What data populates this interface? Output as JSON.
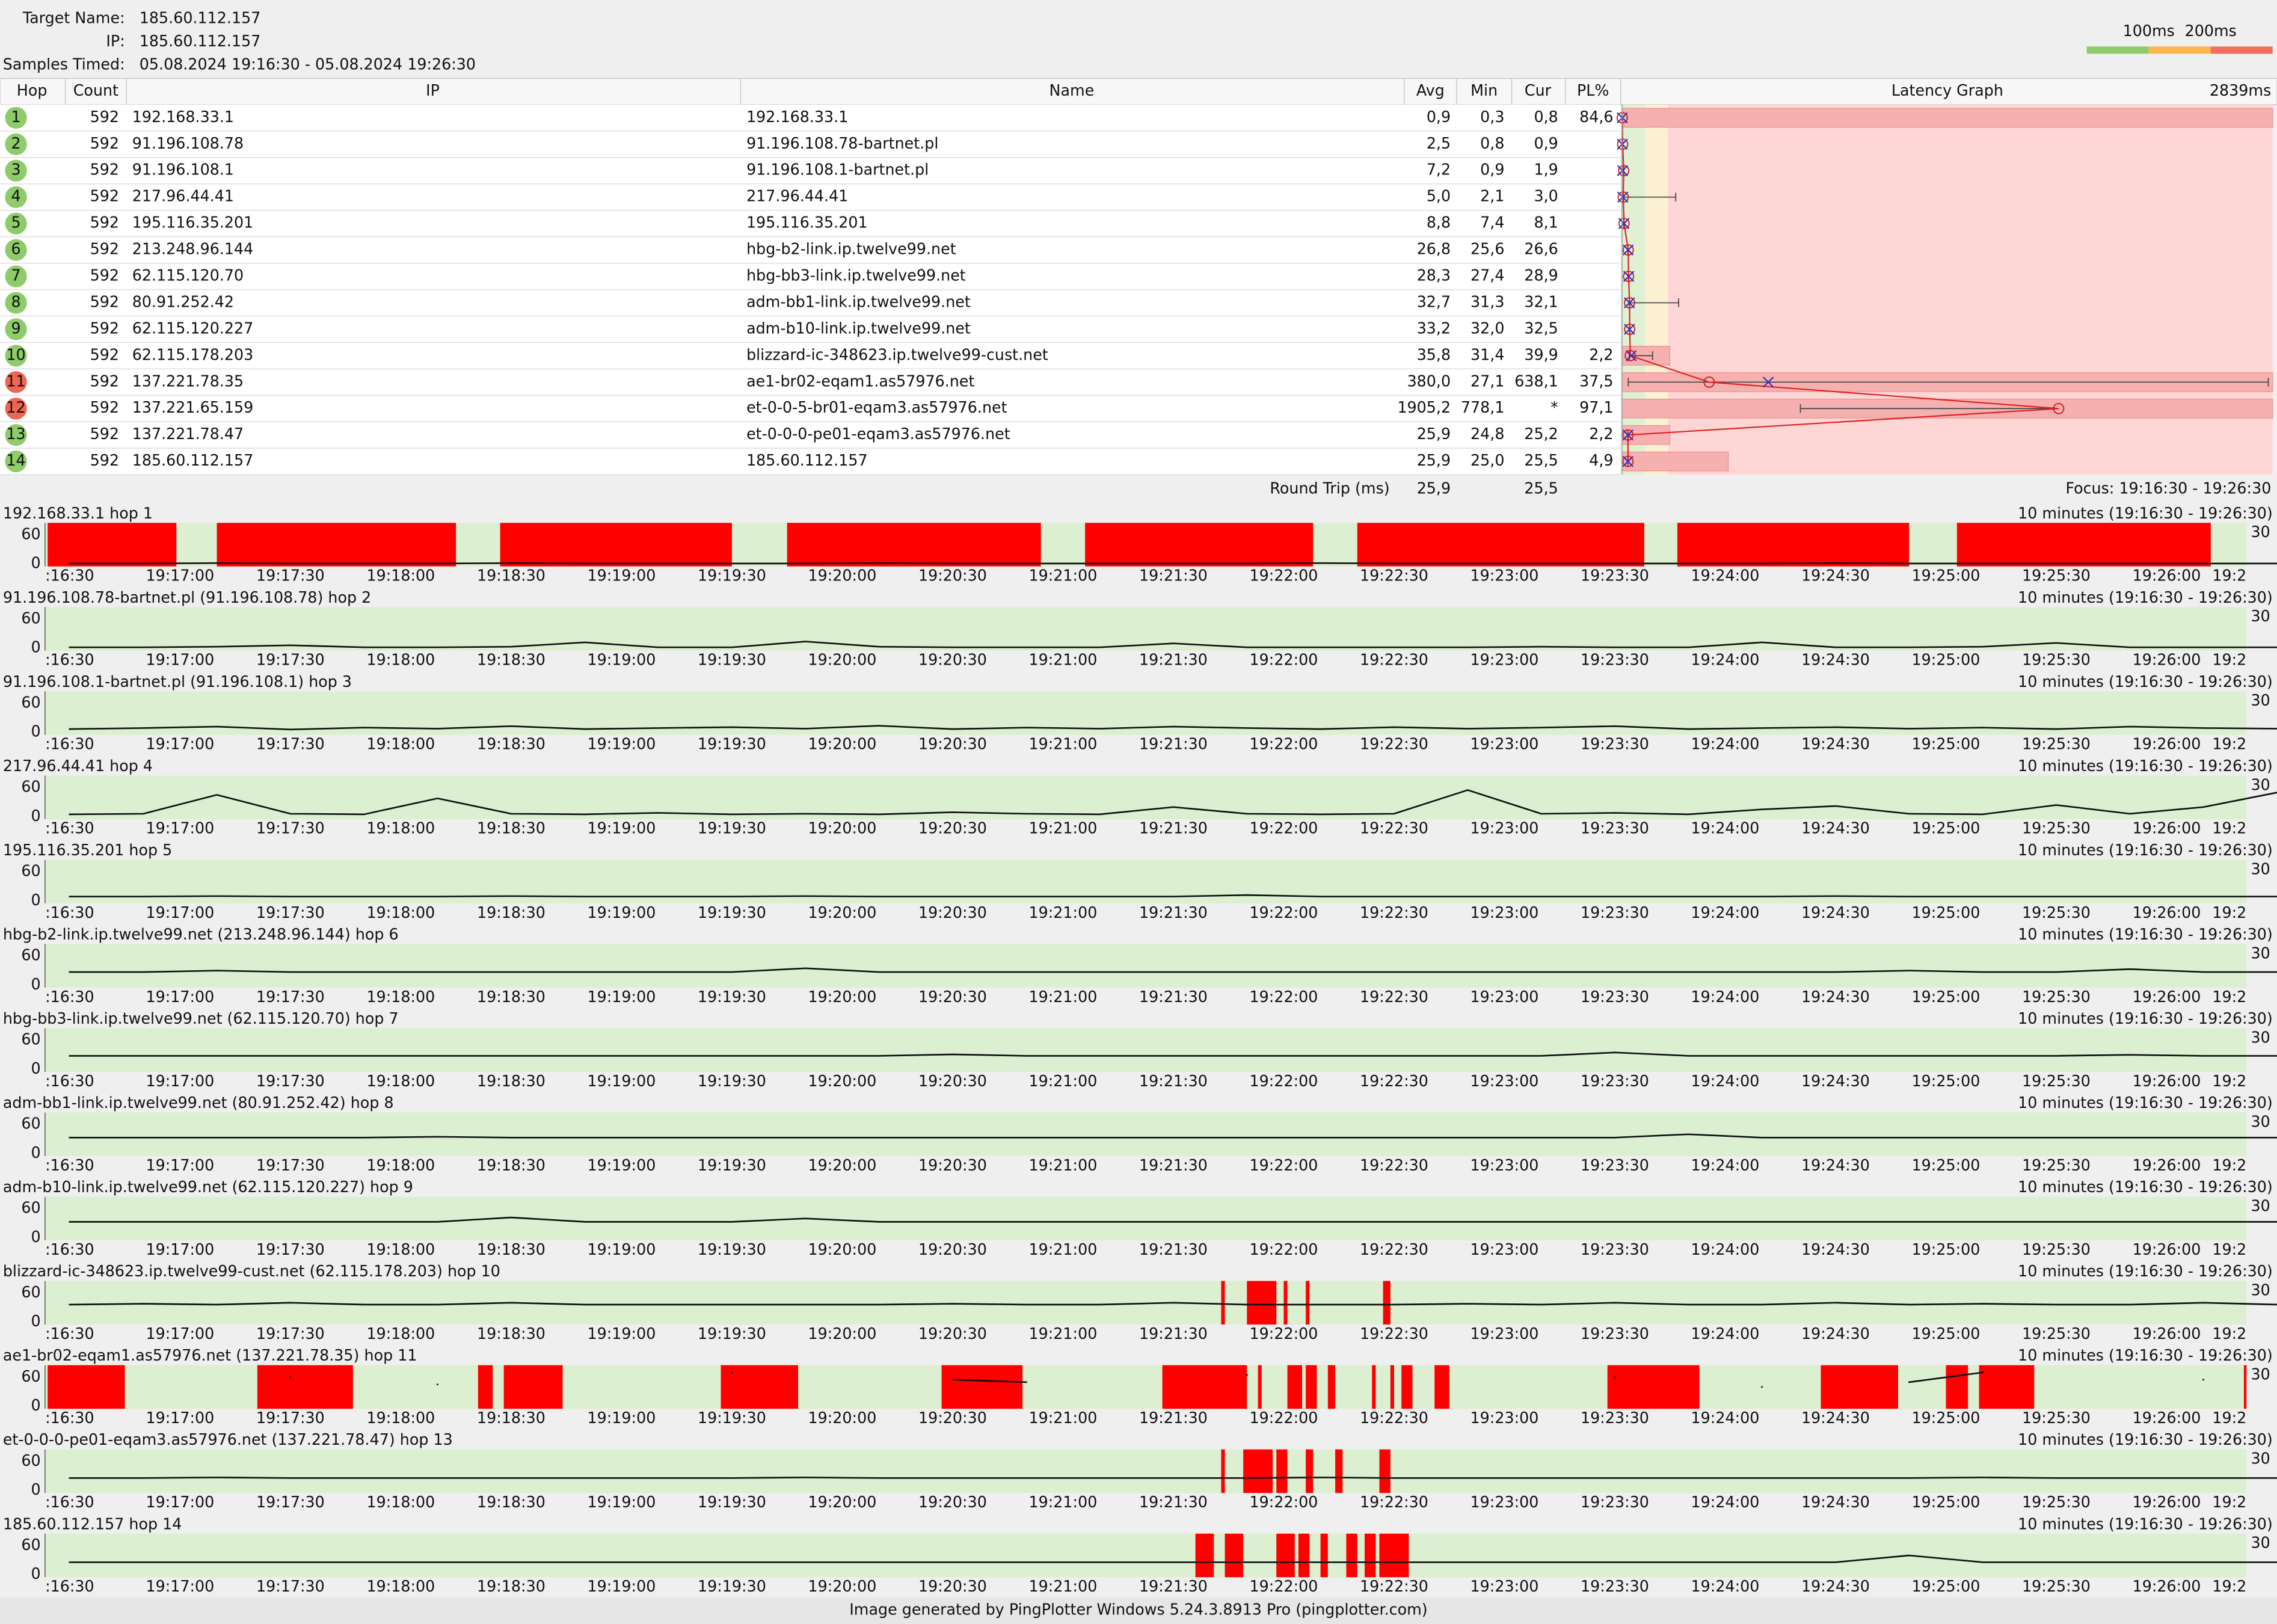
{
  "header": {
    "target_name_label": "Target Name:",
    "target_name": "185.60.112.157",
    "ip_label": "IP:",
    "ip": "185.60.112.157",
    "samples_label": "Samples Timed:",
    "samples": "05.08.2024 19:16:30 - 05.08.2024 19:26:30"
  },
  "legend": {
    "thresholds": [
      {
        "value": 100,
        "label": "100ms"
      },
      {
        "value": 200,
        "label": "200ms"
      }
    ],
    "colors": [
      "#8dcb6b",
      "#fbb74e",
      "#f26e5e"
    ]
  },
  "table": {
    "columns": [
      "Hop",
      "Count",
      "IP",
      "Name",
      "Avg",
      "Min",
      "Cur",
      "PL%",
      "Latency Graph"
    ],
    "graph_max": {
      "value": 2839,
      "label": "2839ms"
    },
    "rows": [
      {
        "hop": "1",
        "color": "#8dcb6b",
        "count": "592",
        "ip": "192.168.33.1",
        "name": "192.168.33.1",
        "avg": "0,9",
        "min": "0,3",
        "cur": "0,8",
        "pl": "84,6"
      },
      {
        "hop": "2",
        "color": "#8dcb6b",
        "count": "592",
        "ip": "91.196.108.78",
        "name": "91.196.108.78-bartnet.pl",
        "avg": "2,5",
        "min": "0,8",
        "cur": "0,9",
        "pl": null
      },
      {
        "hop": "3",
        "color": "#8dcb6b",
        "count": "592",
        "ip": "91.196.108.1",
        "name": "91.196.108.1-bartnet.pl",
        "avg": "7,2",
        "min": "0,9",
        "cur": "1,9",
        "pl": null
      },
      {
        "hop": "4",
        "color": "#8dcb6b",
        "count": "592",
        "ip": "217.96.44.41",
        "name": "217.96.44.41",
        "avg": "5,0",
        "min": "2,1",
        "cur": "3,0",
        "pl": null,
        "max": 234
      },
      {
        "hop": "5",
        "color": "#8dcb6b",
        "count": "592",
        "ip": "195.116.35.201",
        "name": "195.116.35.201",
        "avg": "8,8",
        "min": "7,4",
        "cur": "8,1",
        "pl": null
      },
      {
        "hop": "6",
        "color": "#8dcb6b",
        "count": "592",
        "ip": "213.248.96.144",
        "name": "hbg-b2-link.ip.twelve99.net",
        "avg": "26,8",
        "min": "25,6",
        "cur": "26,6",
        "pl": null
      },
      {
        "hop": "7",
        "color": "#8dcb6b",
        "count": "592",
        "ip": "62.115.120.70",
        "name": "hbg-bb3-link.ip.twelve99.net",
        "avg": "28,3",
        "min": "27,4",
        "cur": "28,9",
        "pl": null
      },
      {
        "hop": "8",
        "color": "#8dcb6b",
        "count": "592",
        "ip": "80.91.252.42",
        "name": "adm-bb1-link.ip.twelve99.net",
        "avg": "32,7",
        "min": "31,3",
        "cur": "32,1",
        "pl": null,
        "max": 247
      },
      {
        "hop": "9",
        "color": "#8dcb6b",
        "count": "592",
        "ip": "62.115.120.227",
        "name": "adm-b10-link.ip.twelve99.net",
        "avg": "33,2",
        "min": "32,0",
        "cur": "32,5",
        "pl": null
      },
      {
        "hop": "10",
        "color": "#8dcb6b",
        "count": "592",
        "ip": "62.115.178.203",
        "name": "blizzard-ic-348623.ip.twelve99-cust.net",
        "avg": "35,8",
        "min": "31,4",
        "cur": "39,9",
        "pl": "2,2",
        "max": 133
      },
      {
        "hop": "11",
        "color": "#ee6552",
        "count": "592",
        "ip": "137.221.78.35",
        "name": "ae1-br02-eqam1.as57976.net",
        "avg": "380,0",
        "min": "27,1",
        "cur": "638,1",
        "pl": "37,5",
        "max": 2820
      },
      {
        "hop": "12",
        "color": "#ee6552",
        "count": "592",
        "ip": "137.221.65.159",
        "name": "et-0-0-5-br01-eqam3.as57976.net",
        "avg": "1905,2",
        "min": "778,1",
        "cur": "*",
        "pl": "97,1"
      },
      {
        "hop": "13",
        "color": "#8dcb6b",
        "count": "592",
        "ip": "137.221.78.47",
        "name": "et-0-0-0-pe01-eqam3.as57976.net",
        "avg": "25,9",
        "min": "24,8",
        "cur": "25,2",
        "pl": "2,2"
      },
      {
        "hop": "14",
        "color": "#8dcb6b",
        "count": "592",
        "ip": "185.60.112.157",
        "name": "185.60.112.157",
        "avg": "25,9",
        "min": "25,0",
        "cur": "25,5",
        "pl": "4,9"
      }
    ],
    "round_trip": {
      "label": "Round Trip (ms)",
      "avg": "25,9",
      "cur": "25,5"
    },
    "focus": "Focus: 19:16:30 - 19:26:30"
  },
  "timelines": {
    "range_label": "10 minutes (19:16:30 - 19:26:30)",
    "loss_max": 30,
    "ylim": [
      -5,
      85
    ],
    "yticks": [
      60,
      0
    ],
    "xlim": [
      "19:16:30",
      "19:26:30"
    ],
    "xticks": [
      {
        "value": "19:16:30",
        "label": ":16:30"
      },
      "19:17:00",
      "19:17:30",
      "19:18:00",
      "19:18:30",
      "19:19:00",
      "19:19:30",
      "19:20:00",
      "19:20:30",
      "19:21:00",
      "19:21:30",
      "19:22:00",
      "19:22:30",
      "19:23:00",
      "19:23:30",
      "19:24:00",
      "19:24:30",
      "19:25:00",
      "19:25:30",
      "19:26:00",
      {
        "value": "19:26:30",
        "label": "19:2"
      }
    ],
    "sample_times": [
      "19:16:30",
      "19:16:50",
      "19:17:10",
      "19:17:30",
      "19:17:50",
      "19:18:10",
      "19:18:30",
      "19:18:50",
      "19:19:10",
      "19:19:30",
      "19:19:50",
      "19:20:10",
      "19:20:30",
      "19:20:50",
      "19:21:10",
      "19:21:30",
      "19:21:50",
      "19:22:10",
      "19:22:30",
      "19:22:50",
      "19:23:10",
      "19:23:30",
      "19:23:50",
      "19:24:10",
      "19:24:30",
      "19:24:50",
      "19:25:10",
      "19:25:30",
      "19:25:50",
      "19:26:10",
      "19:26:30"
    ],
    "panels": [
      {
        "title": "192.168.33.1 hop 1",
        "latency": [
          1,
          1,
          2,
          1,
          1,
          1,
          2,
          1,
          1,
          1,
          1,
          2,
          1,
          1,
          1,
          1,
          1,
          2,
          1,
          1,
          1,
          1,
          1,
          1,
          2,
          1,
          1,
          1,
          1,
          1,
          1
        ],
        "loss": [
          [
            "19:16:24",
            "19:16:59"
          ],
          [
            "19:17:10",
            "19:18:15"
          ],
          [
            "19:18:27",
            "19:19:30"
          ],
          [
            "19:19:45",
            "19:20:54"
          ],
          [
            "19:21:06",
            "19:22:08"
          ],
          [
            "19:22:20",
            "19:23:38"
          ],
          [
            "19:23:47",
            "19:24:50"
          ],
          [
            "19:25:03",
            "19:26:12"
          ]
        ]
      },
      {
        "title": "91.196.108.78-bartnet.pl (91.196.108.78) hop 2",
        "latency": [
          2,
          2,
          3,
          6,
          2,
          2,
          3,
          12,
          2,
          2,
          14,
          3,
          2,
          2,
          2,
          10,
          2,
          2,
          2,
          2,
          3,
          2,
          2,
          12,
          2,
          2,
          3,
          11,
          2,
          2,
          2
        ],
        "loss": []
      },
      {
        "title": "91.196.108.1-bartnet.pl (91.196.108.1) hop 3",
        "latency": [
          7,
          9,
          12,
          6,
          10,
          8,
          13,
          7,
          9,
          11,
          8,
          14,
          7,
          10,
          8,
          12,
          9,
          7,
          11,
          8,
          10,
          13,
          7,
          9,
          11,
          8,
          10,
          7,
          12,
          9,
          8
        ],
        "loss": []
      },
      {
        "title": "217.96.44.41 hop 4",
        "latency": [
          5,
          6,
          45,
          6,
          5,
          38,
          6,
          5,
          8,
          5,
          6,
          5,
          9,
          6,
          5,
          20,
          6,
          5,
          6,
          55,
          6,
          8,
          5,
          15,
          22,
          6,
          5,
          24,
          6,
          20,
          50
        ],
        "loss": []
      },
      {
        "title": "195.116.35.201 hop 5",
        "latency": [
          9,
          9,
          10,
          9,
          9,
          9,
          10,
          9,
          9,
          9,
          10,
          9,
          9,
          9,
          9,
          9,
          12,
          9,
          9,
          9,
          9,
          9,
          9,
          9,
          10,
          9,
          9,
          9,
          9,
          9,
          9
        ],
        "loss": []
      },
      {
        "title": "hbg-b2-link.ip.twelve99.net (213.248.96.144) hop 6",
        "latency": [
          27,
          27,
          30,
          27,
          27,
          27,
          27,
          27,
          27,
          27,
          35,
          27,
          27,
          27,
          27,
          27,
          27,
          27,
          27,
          27,
          27,
          27,
          27,
          27,
          27,
          30,
          27,
          27,
          33,
          27,
          27
        ],
        "loss": []
      },
      {
        "title": "hbg-bb3-link.ip.twelve99.net (62.115.120.70) hop 7",
        "latency": [
          28,
          28,
          28,
          28,
          28,
          28,
          28,
          28,
          28,
          28,
          28,
          28,
          31,
          28,
          28,
          28,
          28,
          28,
          28,
          28,
          28,
          35,
          28,
          28,
          28,
          28,
          28,
          28,
          30,
          28,
          28
        ],
        "loss": []
      },
      {
        "title": "adm-bb1-link.ip.twelve99.net (80.91.252.42) hop 8",
        "latency": [
          33,
          33,
          33,
          33,
          33,
          35,
          33,
          33,
          33,
          33,
          33,
          33,
          33,
          33,
          33,
          33,
          33,
          33,
          33,
          33,
          33,
          33,
          40,
          33,
          33,
          33,
          33,
          33,
          33,
          33,
          33
        ],
        "loss": []
      },
      {
        "title": "adm-b10-link.ip.twelve99.net (62.115.120.227) hop 9",
        "latency": [
          33,
          33,
          33,
          33,
          33,
          33,
          42,
          33,
          33,
          33,
          40,
          33,
          33,
          33,
          33,
          33,
          33,
          33,
          33,
          33,
          33,
          33,
          33,
          33,
          33,
          33,
          33,
          33,
          33,
          33,
          33
        ],
        "loss": []
      },
      {
        "title": "blizzard-ic-348623.ip.twelve99-cust.net (62.115.178.203) hop 10",
        "latency": [
          36,
          38,
          36,
          40,
          36,
          36,
          40,
          36,
          36,
          36,
          36,
          36,
          38,
          36,
          36,
          40,
          36,
          36,
          36,
          38,
          36,
          40,
          36,
          36,
          40,
          36,
          38,
          36,
          36,
          40,
          36
        ],
        "loss": [
          [
            "19:21:43",
            "19:21:44"
          ],
          [
            "19:21:50",
            "19:21:58"
          ],
          [
            "19:22:00",
            "19:22:01"
          ],
          [
            "19:22:06",
            "19:22:07"
          ],
          [
            "19:22:27",
            "19:22:29"
          ]
        ]
      },
      {
        "title": "ae1-br02-eqam1.as57976.net (137.221.78.35) hop 11",
        "latency": [
          null,
          null,
          null,
          60,
          null,
          45,
          null,
          null,
          null,
          70,
          null,
          null,
          55,
          50,
          null,
          null,
          65,
          null,
          null,
          null,
          null,
          60,
          null,
          40,
          null,
          50,
          70,
          null,
          null,
          55,
          null
        ],
        "loss": [
          [
            "19:16:24",
            "19:16:45"
          ],
          [
            "19:17:21",
            "19:17:47"
          ],
          [
            "19:18:21",
            "19:18:25"
          ],
          [
            "19:18:28",
            "19:18:44"
          ],
          [
            "19:19:27",
            "19:19:48"
          ],
          [
            "19:20:27",
            "19:20:49"
          ],
          [
            "19:21:27",
            "19:21:50"
          ],
          [
            "19:21:53",
            "19:21:54"
          ],
          [
            "19:22:01",
            "19:22:05"
          ],
          [
            "19:22:06",
            "19:22:09"
          ],
          [
            "19:22:12",
            "19:22:14"
          ],
          [
            "19:22:24",
            "19:22:25"
          ],
          [
            "19:22:29",
            "19:22:30"
          ],
          [
            "19:22:32",
            "19:22:35"
          ],
          [
            "19:22:41",
            "19:22:45"
          ],
          [
            "19:23:28",
            "19:23:53"
          ],
          [
            "19:24:26",
            "19:24:47"
          ],
          [
            "19:25:00",
            "19:25:06"
          ],
          [
            "19:25:09",
            "19:25:24"
          ],
          [
            "19:26:21",
            "19:26:22"
          ]
        ]
      },
      {
        "title": "et-0-0-0-pe01-eqam3.as57976.net (137.221.78.47) hop 13",
        "latency": [
          26,
          26,
          27,
          26,
          26,
          26,
          26,
          26,
          26,
          26,
          27,
          26,
          26,
          26,
          26,
          26,
          26,
          27,
          26,
          26,
          26,
          26,
          26,
          26,
          26,
          26,
          27,
          26,
          26,
          26,
          26
        ],
        "loss": [
          [
            "19:21:43",
            "19:21:44"
          ],
          [
            "19:21:49",
            "19:21:57"
          ],
          [
            "19:21:58",
            "19:22:01"
          ],
          [
            "19:22:06",
            "19:22:08"
          ],
          [
            "19:22:14",
            "19:22:16"
          ],
          [
            "19:22:26",
            "19:22:29"
          ]
        ]
      },
      {
        "title": "185.60.112.157 hop 14",
        "latency": [
          26,
          26,
          26,
          26,
          26,
          26,
          26,
          26,
          26,
          26,
          26,
          26,
          26,
          26,
          26,
          26,
          26,
          26,
          26,
          26,
          26,
          26,
          26,
          26,
          26,
          40,
          26,
          26,
          26,
          26,
          26
        ],
        "loss": [
          [
            "19:21:36",
            "19:21:41"
          ],
          [
            "19:21:44",
            "19:21:49"
          ],
          [
            "19:21:58",
            "19:22:03"
          ],
          [
            "19:22:04",
            "19:22:07"
          ],
          [
            "19:22:10",
            "19:22:12"
          ],
          [
            "19:22:17",
            "19:22:20"
          ],
          [
            "19:22:22",
            "19:22:25"
          ],
          [
            "19:22:26",
            "19:22:34"
          ]
        ]
      }
    ]
  },
  "footer": "Image generated by PingPlotter Windows 5.24.3.8913 Pro (pingplotter.com)"
}
